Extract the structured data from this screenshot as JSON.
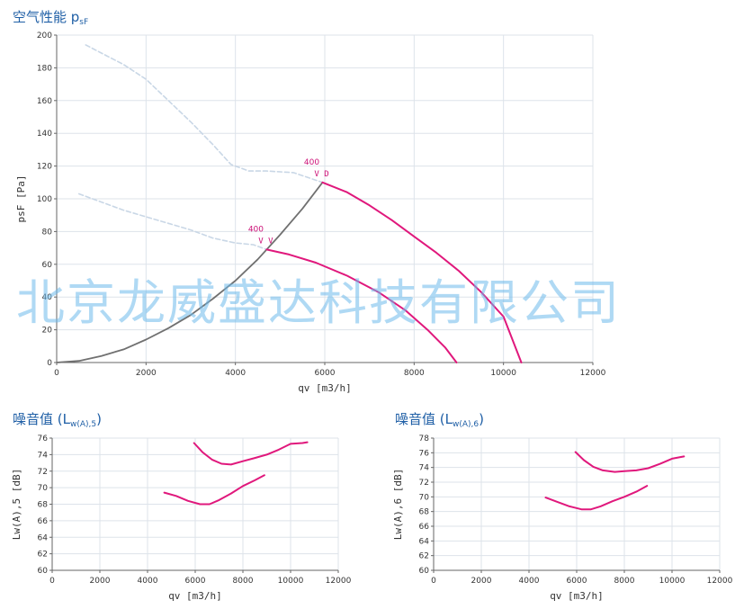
{
  "titles": {
    "main": {
      "text": "空气性能 p",
      "sub": "sF"
    },
    "noise5": {
      "text": "噪音值 (L",
      "sub": "w(A),5",
      "close": ")"
    },
    "noise6": {
      "text": "噪音值 (L",
      "sub": "w(A),6",
      "close": ")"
    }
  },
  "watermark": "北京龙威盛达科技有限公司",
  "colors": {
    "curve": "#e0187c",
    "system": "#707070",
    "dashed": "#c9d7e6",
    "grid": "#dde3ea",
    "axis": "#666666"
  },
  "chart_data": [
    {
      "type": "line",
      "xlabel": "qv [m3/h]",
      "ylabel": "psF [Pa]",
      "xlim": [
        0,
        12000
      ],
      "ylim": [
        0,
        200
      ],
      "xticks": [
        0,
        2000,
        4000,
        6000,
        8000,
        10000,
        12000
      ],
      "yticks": [
        0,
        20,
        40,
        60,
        80,
        100,
        120,
        140,
        160,
        180,
        200
      ],
      "grid": true,
      "series": [
        {
          "role": "curve",
          "x": [
            5950,
            6500,
            7000,
            7500,
            8000,
            8500,
            9000,
            9500,
            10000,
            10400
          ],
          "y": [
            110,
            104,
            96,
            87,
            77,
            67,
            56,
            43,
            28,
            0
          ]
        },
        {
          "role": "curve",
          "x": [
            4700,
            5200,
            5800,
            6500,
            7200,
            7800,
            8300,
            8700,
            8950
          ],
          "y": [
            69,
            66,
            61,
            53,
            43,
            32,
            20,
            9,
            0
          ]
        },
        {
          "role": "system",
          "x": [
            0,
            500,
            1000,
            1500,
            2000,
            2500,
            3000,
            3500,
            4000,
            4500,
            5000,
            5500,
            5950
          ],
          "y": [
            0,
            1,
            4,
            8,
            14,
            21,
            29,
            39,
            50,
            63,
            78,
            94,
            110
          ]
        },
        {
          "role": "dashed",
          "x": [
            650,
            1000,
            1500,
            2000,
            2500,
            3000,
            3500,
            3900,
            4300,
            4700,
            5300,
            5950
          ],
          "y": [
            194,
            189,
            182,
            173,
            160,
            147,
            133,
            121,
            117,
            117,
            116,
            110
          ]
        },
        {
          "role": "dashed",
          "x": [
            500,
            1000,
            1500,
            2000,
            2500,
            3000,
            3500,
            4000,
            4400,
            4700
          ],
          "y": [
            103,
            98,
            93,
            89,
            85,
            81,
            76,
            73,
            72,
            69
          ]
        }
      ],
      "annotations": [
        {
          "x": 5950,
          "y": 110,
          "number": "400",
          "marks": "V D"
        },
        {
          "x": 4700,
          "y": 69,
          "number": "400",
          "marks": "V V"
        }
      ]
    },
    {
      "type": "line",
      "xlabel": "qv [m3/h]",
      "ylabel": "Lw(A),5 [dB]",
      "xlim": [
        0,
        12000
      ],
      "ylim": [
        60,
        76
      ],
      "xticks": [
        0,
        2000,
        4000,
        6000,
        8000,
        10000,
        12000
      ],
      "yticks": [
        60,
        62,
        64,
        66,
        68,
        70,
        72,
        74,
        76
      ],
      "grid": true,
      "series": [
        {
          "role": "curve",
          "x": [
            5950,
            6300,
            6700,
            7100,
            7500,
            8000,
            8500,
            9000,
            9500,
            10000,
            10500,
            10700
          ],
          "y": [
            75.4,
            74.3,
            73.4,
            72.9,
            72.8,
            73.2,
            73.6,
            74.0,
            74.6,
            75.3,
            75.4,
            75.5
          ]
        },
        {
          "role": "curve",
          "x": [
            4700,
            5200,
            5700,
            6200,
            6600,
            7000,
            7500,
            8000,
            8500,
            8900
          ],
          "y": [
            69.4,
            69.0,
            68.4,
            68.0,
            68.0,
            68.5,
            69.3,
            70.2,
            70.9,
            71.5
          ]
        }
      ]
    },
    {
      "type": "line",
      "xlabel": "qv [m3/h]",
      "ylabel": "Lw(A),6 [dB]",
      "xlim": [
        0,
        12000
      ],
      "ylim": [
        60,
        78
      ],
      "xticks": [
        0,
        2000,
        4000,
        6000,
        8000,
        10000,
        12000
      ],
      "yticks": [
        60,
        62,
        64,
        66,
        68,
        70,
        72,
        74,
        76,
        78
      ],
      "grid": true,
      "series": [
        {
          "role": "curve",
          "x": [
            5950,
            6300,
            6700,
            7100,
            7600,
            8000,
            8500,
            9000,
            9500,
            10000,
            10500
          ],
          "y": [
            76.1,
            75.0,
            74.1,
            73.6,
            73.4,
            73.5,
            73.6,
            73.9,
            74.5,
            75.2,
            75.5
          ]
        },
        {
          "role": "curve",
          "x": [
            4700,
            5200,
            5700,
            6200,
            6600,
            7000,
            7500,
            8000,
            8500,
            8950
          ],
          "y": [
            69.9,
            69.3,
            68.7,
            68.3,
            68.3,
            68.7,
            69.4,
            70.0,
            70.7,
            71.5
          ]
        }
      ]
    }
  ]
}
